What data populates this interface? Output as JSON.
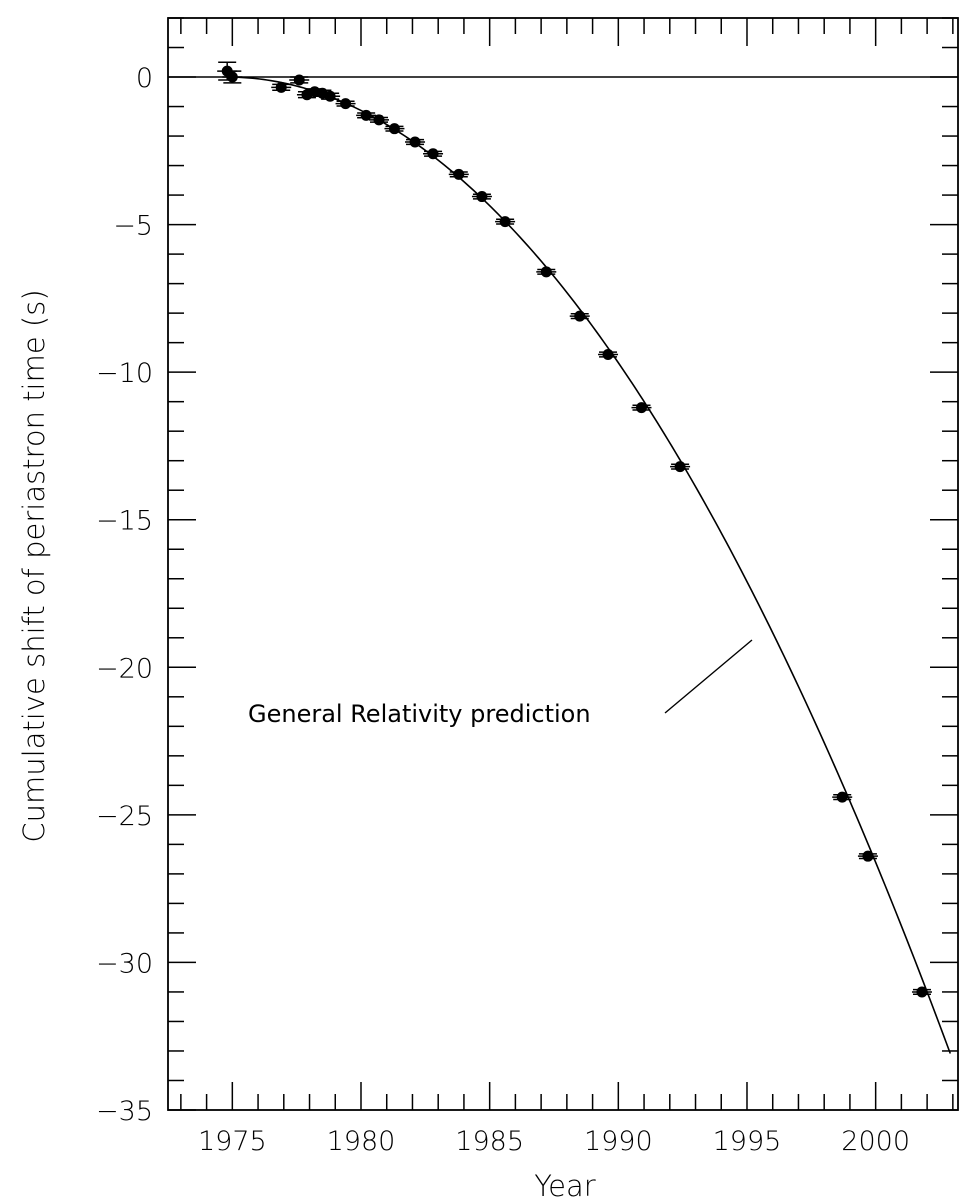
{
  "chart_data": {
    "type": "scatter",
    "title": "",
    "xlabel": "Year",
    "ylabel": "Cumulative shift of periastron time (s)",
    "xlim": [
      1972.5,
      2003.2
    ],
    "ylim": [
      -35,
      2
    ],
    "x_ticks": [
      1975,
      1980,
      1985,
      1990,
      1995,
      2000
    ],
    "y_ticks": [
      0,
      -5,
      -10,
      -15,
      -20,
      -25,
      -30,
      -35
    ],
    "x_tick_labels": [
      "1975",
      "1980",
      "1985",
      "1990",
      "1995",
      "2000"
    ],
    "y_tick_labels": [
      "0",
      "−5",
      "−10",
      "−15",
      "−20",
      "−25",
      "−30",
      "−35"
    ],
    "grid": false,
    "reference_line_y": 0,
    "curve": {
      "label": "General Relativity prediction",
      "model": "quadratic",
      "x0": 1974.8,
      "coefficient": -0.0419,
      "x_range": [
        1974.8,
        2002.9
      ]
    },
    "series": [
      {
        "marker": "filled-circle",
        "points": [
          {
            "x": 1974.8,
            "y": 0.2,
            "yerr": 0.3
          },
          {
            "x": 1975.0,
            "y": 0.0,
            "yerr": 0.2
          },
          {
            "x": 1976.9,
            "y": -0.35,
            "yerr": 0.1
          },
          {
            "x": 1977.6,
            "y": -0.1,
            "yerr": 0.1
          },
          {
            "x": 1977.9,
            "y": -0.6,
            "yerr": 0.1
          },
          {
            "x": 1978.2,
            "y": -0.5,
            "yerr": 0.1
          },
          {
            "x": 1978.5,
            "y": -0.55,
            "yerr": 0.1
          },
          {
            "x": 1978.8,
            "y": -0.65,
            "yerr": 0.1
          },
          {
            "x": 1979.4,
            "y": -0.9,
            "yerr": 0.08
          },
          {
            "x": 1980.2,
            "y": -1.3,
            "yerr": 0.08
          },
          {
            "x": 1980.7,
            "y": -1.45,
            "yerr": 0.08
          },
          {
            "x": 1981.3,
            "y": -1.75,
            "yerr": 0.08
          },
          {
            "x": 1982.1,
            "y": -2.2,
            "yerr": 0.08
          },
          {
            "x": 1982.8,
            "y": -2.6,
            "yerr": 0.08
          },
          {
            "x": 1983.8,
            "y": -3.3,
            "yerr": 0.08
          },
          {
            "x": 1984.7,
            "y": -4.05,
            "yerr": 0.08
          },
          {
            "x": 1985.6,
            "y": -4.9,
            "yerr": 0.08
          },
          {
            "x": 1987.2,
            "y": -6.6,
            "yerr": 0.08
          },
          {
            "x": 1988.5,
            "y": -8.1,
            "yerr": 0.08
          },
          {
            "x": 1989.6,
            "y": -9.4,
            "yerr": 0.08
          },
          {
            "x": 1990.9,
            "y": -11.2,
            "yerr": 0.08
          },
          {
            "x": 1992.4,
            "y": -13.2,
            "yerr": 0.08
          },
          {
            "x": 1998.7,
            "y": -24.4,
            "yerr": 0.08
          },
          {
            "x": 1999.7,
            "y": -26.4,
            "yerr": 0.08
          },
          {
            "x": 2001.8,
            "y": -31.0,
            "yerr": 0.08
          }
        ]
      }
    ]
  }
}
